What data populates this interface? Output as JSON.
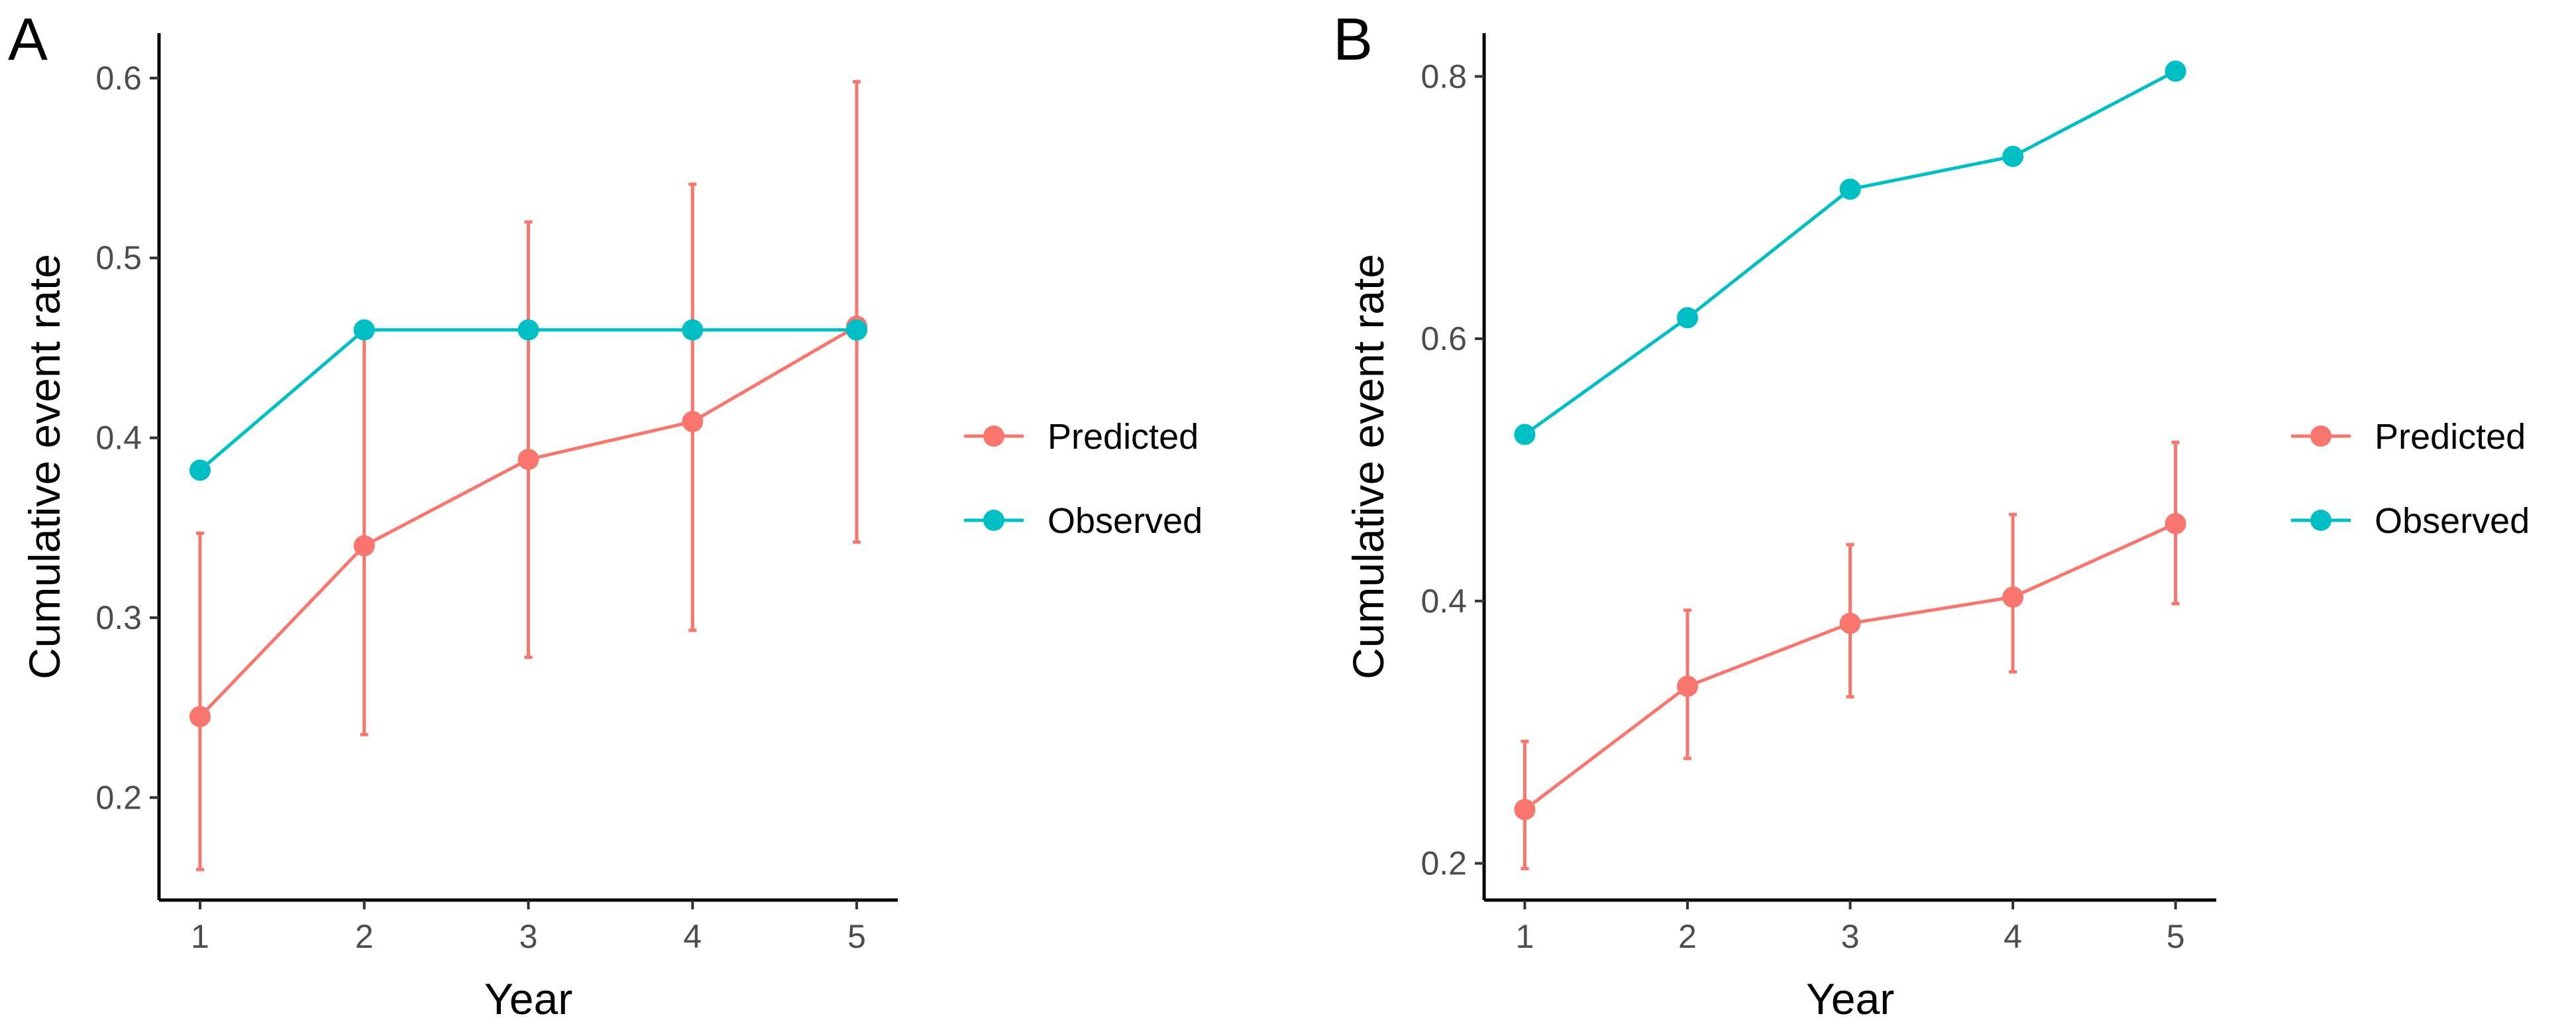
{
  "colors": {
    "predicted": "#F8766D",
    "observed": "#00BFC4",
    "axis": "#000000",
    "tick_text": "#4d4d4d"
  },
  "chart_data": [
    {
      "panel": "A",
      "type": "line",
      "xlabel": "Year",
      "ylabel": "Cumulative event rate",
      "x": [
        1,
        2,
        3,
        4,
        5
      ],
      "xticks": [
        "1",
        "2",
        "3",
        "4",
        "5"
      ],
      "yticks": [
        "0.2",
        "0.3",
        "0.4",
        "0.5",
        "0.6"
      ],
      "ytick_values": [
        0.2,
        0.3,
        0.4,
        0.5,
        0.6
      ],
      "xlim": [
        0.75,
        5.25
      ],
      "ylim": [
        0.143,
        0.625
      ],
      "legend": [
        "Predicted",
        "Observed"
      ],
      "legend_position": "right",
      "series": [
        {
          "name": "Predicted",
          "color_key": "predicted",
          "values": [
            0.245,
            0.34,
            0.388,
            0.409,
            0.462
          ],
          "lower": [
            0.16,
            0.235,
            0.278,
            0.293,
            0.342
          ],
          "upper": [
            0.347,
            0.46,
            0.52,
            0.541,
            0.598
          ]
        },
        {
          "name": "Observed",
          "color_key": "observed",
          "values": [
            0.382,
            0.46,
            0.46,
            0.46,
            0.46
          ]
        }
      ]
    },
    {
      "panel": "B",
      "type": "line",
      "xlabel": "Year",
      "ylabel": "Cumulative event rate",
      "x": [
        1,
        2,
        3,
        4,
        5
      ],
      "xticks": [
        "1",
        "2",
        "3",
        "4",
        "5"
      ],
      "yticks": [
        "0.2",
        "0.4",
        "0.6",
        "0.8"
      ],
      "ytick_values": [
        0.2,
        0.4,
        0.6,
        0.8
      ],
      "xlim": [
        0.75,
        5.25
      ],
      "ylim": [
        0.172,
        0.833
      ],
      "legend": [
        "Predicted",
        "Observed"
      ],
      "legend_position": "right",
      "series": [
        {
          "name": "Predicted",
          "color_key": "predicted",
          "values": [
            0.241,
            0.335,
            0.383,
            0.403,
            0.459
          ],
          "lower": [
            0.196,
            0.28,
            0.327,
            0.346,
            0.398
          ],
          "upper": [
            0.293,
            0.393,
            0.443,
            0.466,
            0.521
          ]
        },
        {
          "name": "Observed",
          "color_key": "observed",
          "values": [
            0.527,
            0.616,
            0.714,
            0.739,
            0.804
          ]
        }
      ]
    }
  ]
}
